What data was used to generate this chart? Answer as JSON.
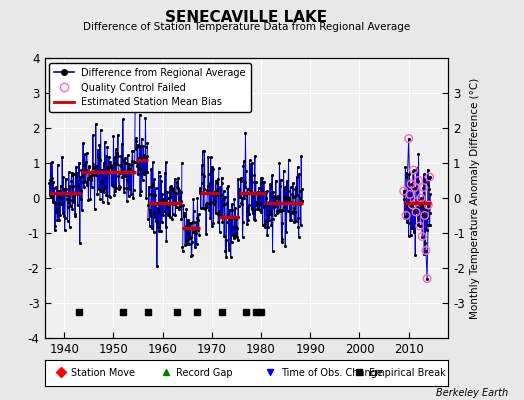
{
  "title": "SENECAVILLE LAKE",
  "subtitle": "Difference of Station Temperature Data from Regional Average",
  "ylabel": "Monthly Temperature Anomaly Difference (°C)",
  "xlabel_ticks": [
    1940,
    1950,
    1960,
    1970,
    1980,
    1990,
    2000,
    2010
  ],
  "ylim": [
    -4,
    4
  ],
  "xlim": [
    1936,
    2018
  ],
  "bg_color": "#e8e8e8",
  "plot_bg_color": "#f0f0f0",
  "grid_color": "white",
  "line_color": "#0000cc",
  "dot_color": "#000000",
  "bias_color": "#cc0000",
  "qc_color": "#ff66cc",
  "watermark": "Berkeley Earth",
  "segments": [
    {
      "x_start": 1937.0,
      "x_end": 1943.5,
      "bias": 0.15
    },
    {
      "x_start": 1943.5,
      "x_end": 1954.5,
      "bias": 0.75
    },
    {
      "x_start": 1954.5,
      "x_end": 1957.0,
      "bias": 1.1
    },
    {
      "x_start": 1957.0,
      "x_end": 1964.0,
      "bias": -0.15
    },
    {
      "x_start": 1964.0,
      "x_end": 1967.5,
      "bias": -0.85
    },
    {
      "x_start": 1967.5,
      "x_end": 1971.5,
      "bias": 0.15
    },
    {
      "x_start": 1971.5,
      "x_end": 1975.5,
      "bias": -0.55
    },
    {
      "x_start": 1975.5,
      "x_end": 1981.0,
      "bias": 0.15
    },
    {
      "x_start": 1981.0,
      "x_end": 1988.5,
      "bias": -0.15
    },
    {
      "x_start": 2009.0,
      "x_end": 2014.5,
      "bias": -0.15
    }
  ],
  "empirical_breaks": [
    1943,
    1952,
    1957,
    1963,
    1967,
    1972,
    1977,
    1979,
    1980
  ],
  "qc_fail_years": [
    2009.0,
    2009.5,
    2010.0,
    2010.25,
    2010.5,
    2010.75,
    2011.0,
    2011.25,
    2011.5,
    2011.75,
    2012.0,
    2012.25,
    2012.5,
    2012.75,
    2013.0,
    2013.25,
    2013.5,
    2013.75,
    2014.0,
    2014.25
  ],
  "qc_fail_vals": [
    0.2,
    -0.5,
    1.7,
    0.1,
    0.4,
    -0.2,
    0.8,
    0.3,
    -0.4,
    -0.1,
    0.5,
    -0.8,
    0.0,
    -1.1,
    0.3,
    -0.5,
    -1.5,
    -2.3,
    -0.2,
    0.6
  ],
  "noise_std": 0.55,
  "seed": 42
}
